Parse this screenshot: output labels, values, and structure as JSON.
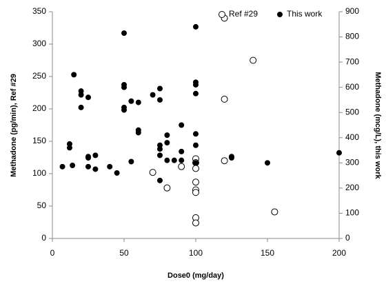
{
  "chart_data": {
    "type": "scatter",
    "xlabel": "Dose0 (mg/day)",
    "ylabel": "Methadone (pg/min), Ref #29",
    "y2label": "Methadone (mcg/L), this work",
    "xlim": [
      0,
      200
    ],
    "xticks": [
      0,
      50,
      100,
      150,
      200
    ],
    "ylim": [
      0,
      350
    ],
    "yticks": [
      0,
      50,
      100,
      150,
      200,
      250,
      300,
      350
    ],
    "y2lim": [
      0,
      900
    ],
    "y2ticks": [
      0,
      100,
      200,
      300,
      400,
      500,
      600,
      700,
      800,
      900
    ],
    "legend": "top-right",
    "series": [
      {
        "name": "Ref #29",
        "color": "#000000",
        "marker": "open",
        "x": [
          120,
          140,
          120,
          120,
          70,
          80,
          90,
          100,
          100,
          100,
          100,
          100,
          100,
          100,
          100,
          155
        ],
        "values": [
          340,
          275,
          215,
          120,
          102,
          78,
          111,
          123,
          117,
          108,
          87,
          75,
          71,
          32,
          24,
          41
        ]
      },
      {
        "name": "This work",
        "color": "#000000",
        "marker": "filled",
        "axis": "y2",
        "x": [
          7,
          12,
          12,
          14,
          15,
          20,
          20,
          20,
          25,
          25,
          25,
          25,
          30,
          30,
          40,
          45,
          50,
          50,
          50,
          50,
          50,
          55,
          55,
          60,
          60,
          60,
          70,
          75,
          75,
          75,
          75,
          75,
          75,
          80,
          80,
          80,
          85,
          90,
          90,
          90,
          100,
          100,
          100,
          100,
          100,
          100,
          100,
          125,
          125,
          150,
          200
        ],
        "values": [
          285,
          375,
          360,
          290,
          650,
          585,
          570,
          520,
          560,
          325,
          320,
          285,
          330,
          275,
          285,
          260,
          815,
          610,
          600,
          520,
          510,
          545,
          305,
          540,
          430,
          420,
          570,
          595,
          550,
          370,
          355,
          330,
          230,
          410,
          380,
          310,
          310,
          450,
          345,
          310,
          840,
          620,
          610,
          575,
          415,
          370,
          300,
          325,
          320,
          300,
          340
        ]
      }
    ]
  }
}
